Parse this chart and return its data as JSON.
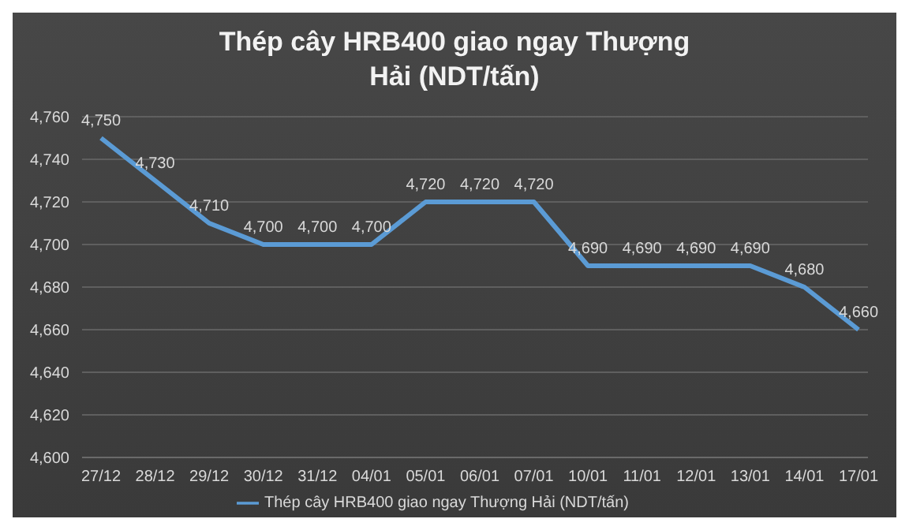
{
  "chart_data": {
    "type": "line",
    "title": "Thép cây HRB400 giao ngay Thượng Hải (NDT/tấn)",
    "categories": [
      "27/12",
      "28/12",
      "29/12",
      "30/12",
      "31/12",
      "04/01",
      "05/01",
      "06/01",
      "07/01",
      "10/01",
      "11/01",
      "12/01",
      "13/01",
      "14/01",
      "17/01"
    ],
    "series": [
      {
        "name": "Thép cây HRB400 giao ngay Thượng Hải (NDT/tấn)",
        "color": "#5b9bd5",
        "values": [
          4750,
          4730,
          4710,
          4700,
          4700,
          4700,
          4720,
          4720,
          4720,
          4690,
          4690,
          4690,
          4690,
          4680,
          4660
        ],
        "value_labels": [
          "4,750",
          "4,730",
          "4,710",
          "4,700",
          "4,700",
          "4,700",
          "4,720",
          "4,720",
          "4,720",
          "4,690",
          "4,690",
          "4,690",
          "4,690",
          "4,680",
          "4,660"
        ]
      }
    ],
    "ylim": [
      4600,
      4760
    ],
    "yticks": [
      {
        "value": 4600,
        "label": "4,600"
      },
      {
        "value": 4620,
        "label": "4,620"
      },
      {
        "value": 4640,
        "label": "4,640"
      },
      {
        "value": 4660,
        "label": "4,660"
      },
      {
        "value": 4680,
        "label": "4,680"
      },
      {
        "value": 4700,
        "label": "4,700"
      },
      {
        "value": 4720,
        "label": "4,720"
      },
      {
        "value": 4740,
        "label": "4,740"
      },
      {
        "value": 4760,
        "label": "4,760"
      }
    ],
    "grid": "y",
    "legend": "bottom",
    "marker": "none",
    "line_style": "solid"
  }
}
